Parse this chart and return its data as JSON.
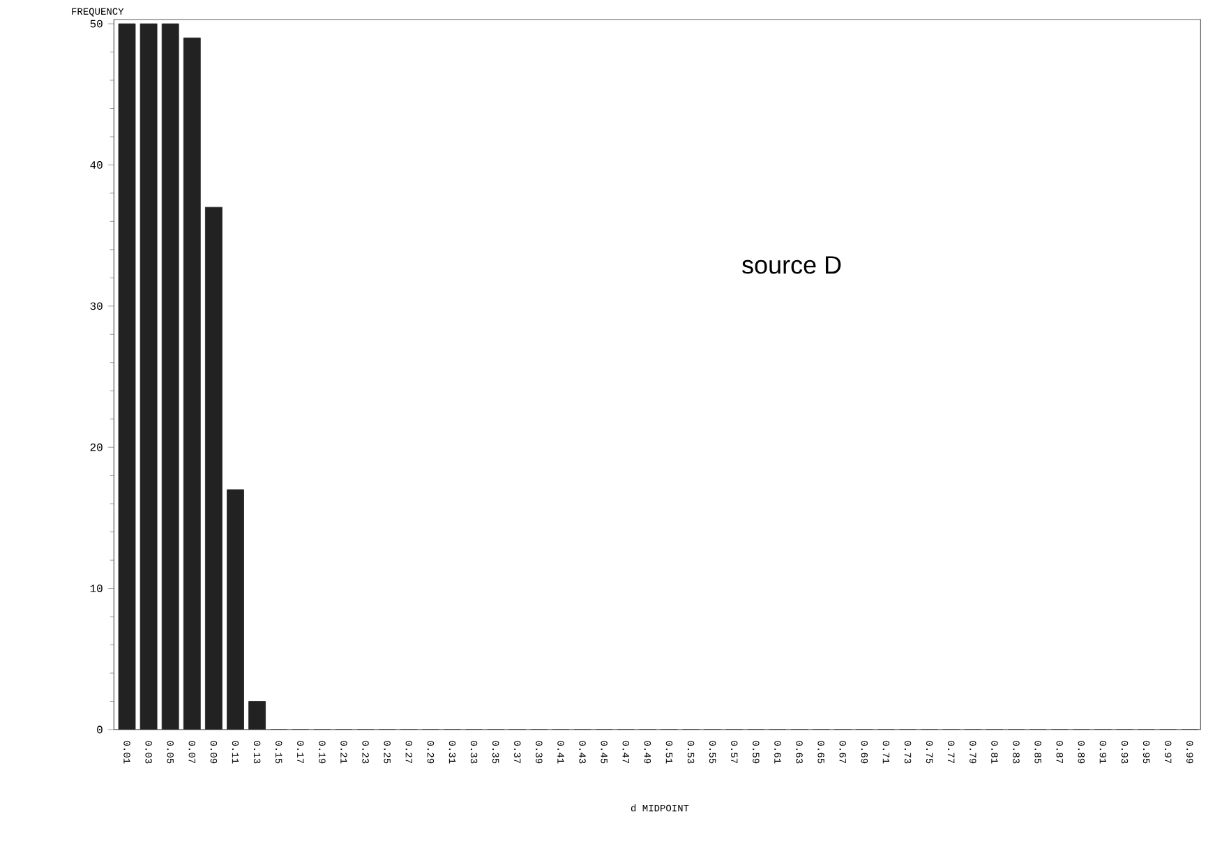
{
  "chart_data": {
    "type": "bar",
    "xlabel": "d MIDPOINT",
    "ylabel": "FREQUENCY",
    "categories": [
      "0.01",
      "0.03",
      "0.05",
      "0.07",
      "0.09",
      "0.11",
      "0.13",
      "0.15",
      "0.17",
      "0.19",
      "0.21",
      "0.23",
      "0.25",
      "0.27",
      "0.29",
      "0.31",
      "0.33",
      "0.35",
      "0.37",
      "0.39",
      "0.41",
      "0.43",
      "0.45",
      "0.47",
      "0.49",
      "0.51",
      "0.53",
      "0.55",
      "0.57",
      "0.59",
      "0.61",
      "0.63",
      "0.65",
      "0.67",
      "0.69",
      "0.71",
      "0.73",
      "0.75",
      "0.77",
      "0.79",
      "0.81",
      "0.83",
      "0.85",
      "0.87",
      "0.89",
      "0.91",
      "0.93",
      "0.95",
      "0.97",
      "0.99"
    ],
    "values": [
      50,
      50,
      50,
      49,
      37,
      17,
      2,
      0,
      0,
      0,
      0,
      0,
      0,
      0,
      0,
      0,
      0,
      0,
      0,
      0,
      0,
      0,
      0,
      0,
      0,
      0,
      0,
      0,
      0,
      0,
      0,
      0,
      0,
      0,
      0,
      0,
      0,
      0,
      0,
      0,
      0,
      0,
      0,
      0,
      0,
      0,
      0,
      0,
      0,
      0
    ],
    "color": "#222222",
    "ylim": [
      0,
      50.3
    ],
    "yticks": [
      0,
      10,
      20,
      30,
      40,
      50
    ],
    "annotations": [
      "source D"
    ]
  }
}
